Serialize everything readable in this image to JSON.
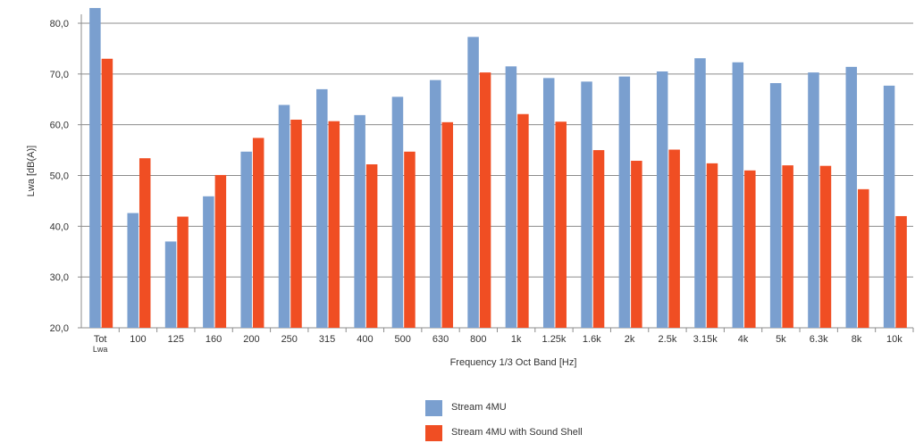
{
  "chart_data": {
    "type": "bar",
    "xlabel": "Frequency 1/3 Oct Band [Hz]",
    "ylabel": "Lwa [dB(A)]",
    "ylim": [
      20,
      80
    ],
    "yticks": [
      "20,0",
      "30,0",
      "40,0",
      "50,0",
      "60,0",
      "70,0",
      "80,0"
    ],
    "grid": true,
    "legend_position": "bottom",
    "categories": [
      "Tot Lwa",
      "100",
      "125",
      "160",
      "200",
      "250",
      "315",
      "400",
      "500",
      "630",
      "800",
      "1k",
      "1.25k",
      "1.6k",
      "2k",
      "2.5k",
      "3.15k",
      "4k",
      "5k",
      "6.3k",
      "8k",
      "10k"
    ],
    "series": [
      {
        "name": "Stream 4MU",
        "color": "#7a9fcf",
        "values": [
          83.0,
          42.6,
          37.0,
          45.9,
          54.7,
          63.9,
          67.0,
          61.9,
          65.5,
          68.8,
          77.3,
          71.5,
          69.2,
          68.5,
          69.5,
          70.5,
          73.1,
          72.3,
          68.2,
          70.3,
          71.4,
          67.7
        ]
      },
      {
        "name": "Stream 4MU with Sound Shell",
        "color": "#f04e23",
        "values": [
          73.0,
          53.4,
          41.9,
          50.1,
          57.4,
          61.0,
          60.7,
          52.2,
          54.7,
          60.5,
          70.3,
          62.1,
          60.6,
          55.0,
          52.9,
          55.1,
          52.4,
          51.0,
          52.0,
          51.9,
          47.3,
          42.0
        ]
      }
    ]
  }
}
